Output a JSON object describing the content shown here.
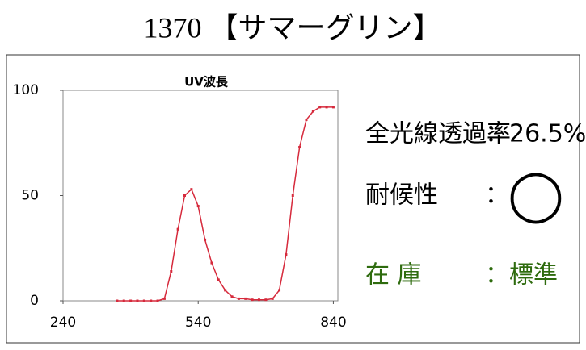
{
  "header": {
    "title": "1370 【サマーグリン】"
  },
  "chart_data": {
    "type": "line",
    "title": "UV波長",
    "x": [
      360,
      375,
      390,
      405,
      420,
      435,
      450,
      465,
      480,
      495,
      510,
      525,
      540,
      555,
      570,
      585,
      600,
      615,
      630,
      645,
      660,
      675,
      690,
      705,
      720,
      735,
      750,
      765,
      780,
      795,
      810,
      825,
      840
    ],
    "series": [
      {
        "name": "UV波長",
        "color": "#d62a3c",
        "values": [
          0,
          0,
          0,
          0,
          0,
          0,
          0,
          1,
          14,
          34,
          50,
          53,
          45,
          29,
          18,
          10,
          5,
          2,
          1,
          1,
          0.5,
          0.5,
          0.5,
          1,
          5,
          22,
          50,
          73,
          86,
          90,
          92,
          92,
          92
        ]
      }
    ],
    "xlim": [
      240,
      850
    ],
    "xticks": [
      240,
      540,
      840
    ],
    "ylim": [
      0,
      100
    ],
    "yticks": [
      0,
      50,
      100
    ],
    "grid": false
  },
  "specs": {
    "transmittance": {
      "label": "全光線透過率",
      "value": "：26.5%"
    },
    "weather": {
      "label": "耐候性",
      "value": "：",
      "rating": "◯"
    },
    "stock": {
      "label": "在 庫",
      "value": "：標準"
    }
  }
}
